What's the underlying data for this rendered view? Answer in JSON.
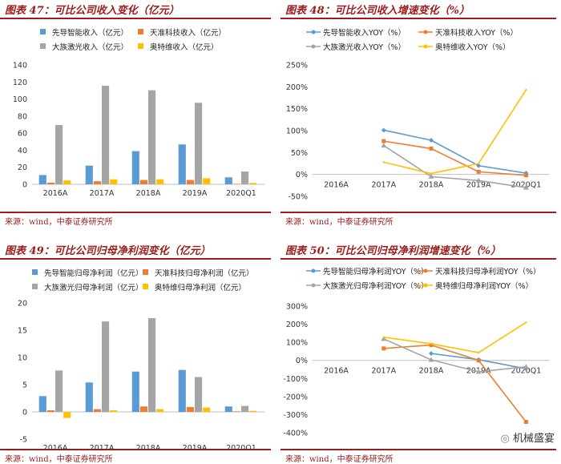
{
  "panels": [
    {
      "title": "图表 47：可比公司收入变化（亿元）",
      "source": "来源：wind，中泰证券研究所"
    },
    {
      "title": "图表 48：可比公司收入增速变化（%）",
      "source": "来源：wind，中泰证券研究所"
    },
    {
      "title": "图表 49：可比公司归母净利润变化（亿元）",
      "source": "来源：wind，中泰证券研究所"
    },
    {
      "title": "图表 50：可比公司归母净利润增速变化（%）",
      "source": "来源：wind，中泰证券研究所"
    }
  ],
  "watermark": "机械盛宴",
  "chart_data": [
    {
      "type": "bar",
      "categories": [
        "2016A",
        "2017A",
        "2018A",
        "2019A",
        "2020Q1"
      ],
      "ylim": [
        0,
        140
      ],
      "yticks": [
        0,
        20,
        40,
        60,
        80,
        100,
        120,
        140
      ],
      "colors": [
        "#5b9bd5",
        "#ed7d31",
        "#a5a5a5",
        "#ffc000"
      ],
      "series": [
        {
          "name": "先导智能收入（亿元）",
          "values": [
            10.9,
            21.9,
            38.9,
            46.8,
            8.2
          ]
        },
        {
          "name": "天准科技收入（亿元）",
          "values": [
            2.0,
            3.6,
            5.1,
            5.1,
            0.5
          ]
        },
        {
          "name": "大族激光收入（亿元）",
          "values": [
            69.6,
            115.6,
            110.3,
            95.6,
            15.0
          ]
        },
        {
          "name": "奥特维收入（亿元）",
          "values": [
            4.6,
            5.9,
            5.9,
            7.1,
            1.5
          ]
        }
      ]
    },
    {
      "type": "line",
      "categories": [
        "2016A",
        "2017A",
        "2018A",
        "2019A",
        "2020Q1"
      ],
      "ylim": [
        -50,
        250
      ],
      "yticks": [
        -50,
        0,
        50,
        100,
        150,
        200,
        250
      ],
      "ytick_labels": [
        "-50%",
        "0%",
        "50%",
        "100%",
        "150%",
        "200%",
        "250%"
      ],
      "colors": [
        "#5b9bd5",
        "#ed7d31",
        "#a5a5a5",
        "#ffc000"
      ],
      "series": [
        {
          "name": "先导智能收入YOY（%）",
          "values": [
            null,
            101,
            78,
            20,
            3
          ]
        },
        {
          "name": "天准科技收入YOY（%）",
          "values": [
            null,
            76,
            59,
            6,
            -2
          ]
        },
        {
          "name": "大族激光收入YOY（%）",
          "values": [
            null,
            66,
            -5,
            -14,
            -30
          ]
        },
        {
          "name": "奥特维收入YOY（%）",
          "values": [
            null,
            28,
            2,
            25,
            193
          ]
        }
      ]
    },
    {
      "type": "bar",
      "categories": [
        "2016A",
        "2017A",
        "2018A",
        "2019A",
        "2020Q1"
      ],
      "ylim": [
        -5,
        20
      ],
      "yticks": [
        -5,
        0,
        5,
        10,
        15,
        20
      ],
      "colors": [
        "#5b9bd5",
        "#ed7d31",
        "#a5a5a5",
        "#ffc000"
      ],
      "series": [
        {
          "name": "先导智能归母净利润（亿元）",
          "values": [
            2.9,
            5.4,
            7.4,
            7.7,
            1.0
          ]
        },
        {
          "name": "天准科技归母净利润（亿元）",
          "values": [
            0.3,
            0.5,
            1.0,
            0.9,
            0.1
          ]
        },
        {
          "name": "大族激光归母净利润（亿元）",
          "values": [
            7.6,
            16.6,
            17.2,
            6.4,
            1.1
          ]
        },
        {
          "name": "奥特维归母净利润（亿元）",
          "values": [
            -1.1,
            0.3,
            0.5,
            0.8,
            0.2
          ]
        }
      ]
    },
    {
      "type": "line",
      "categories": [
        "2016A",
        "2017A",
        "2018A",
        "2019A",
        "2020Q1"
      ],
      "ylim": [
        -400,
        300
      ],
      "yticks": [
        -400,
        -300,
        -200,
        -100,
        0,
        100,
        200,
        300
      ],
      "ytick_labels": [
        "-400%",
        "-300%",
        "-200%",
        "-100%",
        "0%",
        "100%",
        "200%",
        "300%"
      ],
      "colors": [
        "#5b9bd5",
        "#ed7d31",
        "#a5a5a5",
        "#ffc000"
      ],
      "series": [
        {
          "name": "先导智能归母净利润YOY（%）",
          "values": [
            null,
            null,
            38,
            4,
            -46
          ]
        },
        {
          "name": "天准科技归母净利润YOY（%）",
          "values": [
            null,
            66,
            85,
            0,
            -340
          ]
        },
        {
          "name": "大族激光归母净利润YOY（%）",
          "values": [
            null,
            119,
            3,
            -63,
            -35
          ]
        },
        {
          "name": "奥特维归母净利润YOY（%）",
          "values": [
            null,
            128,
            92,
            43,
            210
          ]
        }
      ]
    }
  ]
}
